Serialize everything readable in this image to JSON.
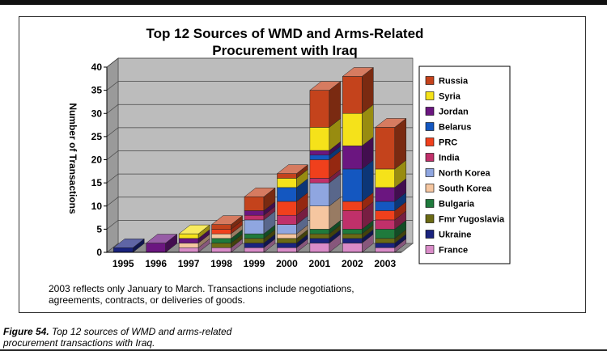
{
  "chart_data": {
    "type": "bar",
    "stacked": true,
    "style": "3d",
    "title_line1": "Top 12 Sources of WMD and Arms-Related",
    "title_line2": "Procurement with Iraq",
    "xlabel": "",
    "ylabel": "Number of Transactions",
    "ylim": [
      0,
      40
    ],
    "yticks": [
      0,
      5,
      10,
      15,
      20,
      25,
      30,
      35,
      40
    ],
    "categories": [
      "1995",
      "1996",
      "1997",
      "1998",
      "1999",
      "2000",
      "2001",
      "2002",
      "2003"
    ],
    "legend_position": "right",
    "series": [
      {
        "name": "France",
        "color": "#d98cc8",
        "values": [
          0,
          0,
          1,
          1,
          1,
          1,
          2,
          2,
          1
        ]
      },
      {
        "name": "Ukraine",
        "color": "#1a237e",
        "values": [
          1,
          0,
          0,
          0,
          1,
          1,
          1,
          1,
          1
        ]
      },
      {
        "name": "Fmr Yugoslavia",
        "color": "#6b6a14",
        "values": [
          0,
          0,
          0,
          1,
          1,
          1,
          1,
          1,
          1
        ]
      },
      {
        "name": "Bulgaria",
        "color": "#1f7a3c",
        "values": [
          0,
          0,
          0,
          1,
          1,
          0,
          1,
          1,
          2
        ]
      },
      {
        "name": "South Korea",
        "color": "#f5c6a0",
        "values": [
          0,
          0,
          1,
          1,
          0,
          1,
          5,
          0,
          0
        ]
      },
      {
        "name": "North Korea",
        "color": "#8fa6e0",
        "values": [
          0,
          0,
          0,
          0,
          3,
          2,
          5,
          0,
          0
        ]
      },
      {
        "name": "India",
        "color": "#c0306a",
        "values": [
          0,
          0,
          0,
          0,
          1,
          2,
          1,
          4,
          2
        ]
      },
      {
        "name": "PRC",
        "color": "#f0401c",
        "values": [
          0,
          0,
          0,
          1,
          0,
          3,
          4,
          2,
          2
        ]
      },
      {
        "name": "Belarus",
        "color": "#1457c0",
        "values": [
          0,
          0,
          0,
          0,
          0,
          3,
          1,
          7,
          2
        ]
      },
      {
        "name": "Jordan",
        "color": "#6b1680",
        "values": [
          0,
          2,
          1,
          0,
          1,
          0,
          1,
          5,
          3
        ]
      },
      {
        "name": "Syria",
        "color": "#f5e21a",
        "values": [
          0,
          0,
          1,
          0,
          0,
          2,
          5,
          7,
          4
        ]
      },
      {
        "name": "Russia",
        "color": "#c4431c",
        "values": [
          0,
          0,
          0,
          1,
          3,
          1,
          8,
          8,
          9
        ]
      }
    ]
  },
  "note_line1": "2003 reflects only January to March.  Transactions include negotiations,",
  "note_line2": "agreements, contracts, or deliveries of goods.",
  "caption_label": "Figure 54.",
  "caption_line1": " Top 12 sources of WMD and arms-related",
  "caption_line2": "procurement transactions with Iraq."
}
